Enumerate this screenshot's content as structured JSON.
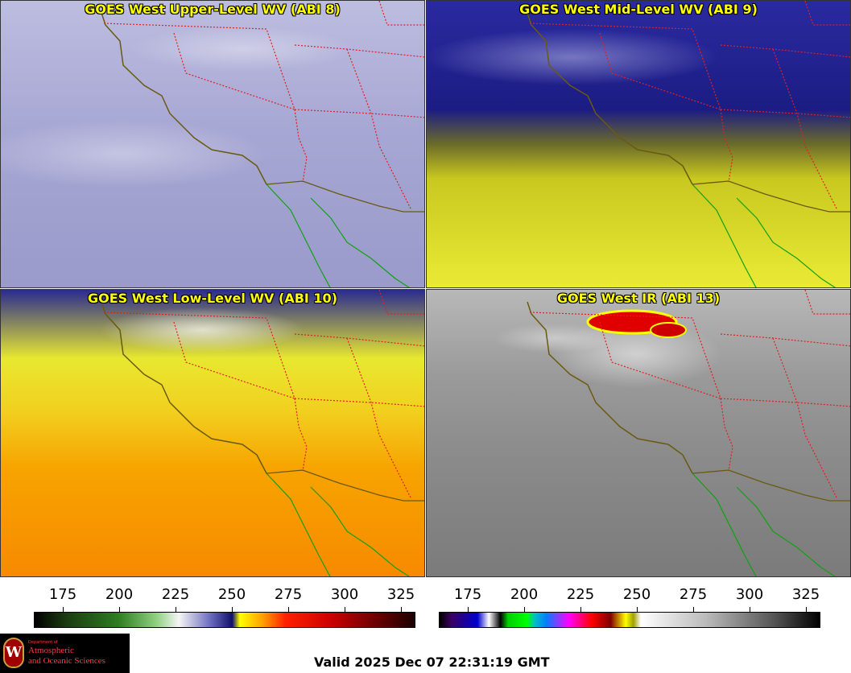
{
  "panels": [
    {
      "title": "GOES West Upper-Level WV (ABI 8)"
    },
    {
      "title": "GOES West Mid-Level WV (ABI 9)"
    },
    {
      "title": "GOES West Low-Level WV (ABI 10)"
    },
    {
      "title": "GOES West IR (ABI 13)"
    }
  ],
  "colorbars": {
    "wv_ticks": [
      "175",
      "200",
      "225",
      "250",
      "275",
      "300",
      "325"
    ],
    "ir_ticks": [
      "175",
      "200",
      "225",
      "250",
      "275",
      "300",
      "325"
    ]
  },
  "logo": {
    "crest_letter": "W",
    "dept_small": "Department of",
    "name_line1": "Atmospheric",
    "name_line2": "and Oceanic Sciences"
  },
  "footer": {
    "valid_time": "Valid 2025 Dec 07 22:31:19 GMT"
  },
  "colors": {
    "title_yellow": "#ffff00",
    "state_border": "#e02020",
    "coast_us": "#6a5a10",
    "coast_mx": "#12a012"
  }
}
